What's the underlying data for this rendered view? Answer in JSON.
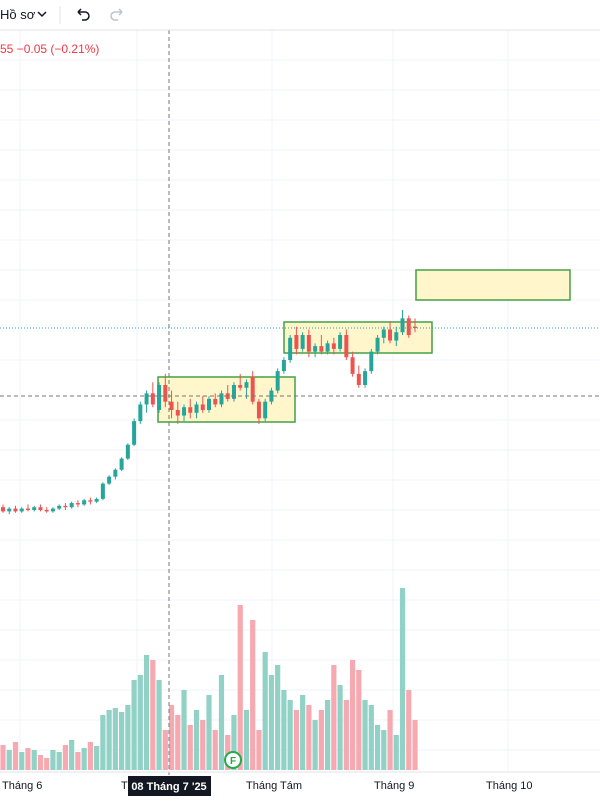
{
  "toolbar": {
    "profile": "Hồ sơ"
  },
  "legend": {
    "change": "55 −0.05 (−0.21%)"
  },
  "chart_data": {
    "type": "candlestick",
    "open": [
      17.1,
      16.95,
      17.05,
      16.95,
      17.05,
      17.0,
      17.1,
      17.0,
      16.95,
      17.05,
      17.15,
      17.1,
      17.25,
      17.2,
      17.35,
      17.3,
      17.4,
      17.95,
      18.2,
      18.45,
      18.85,
      19.35,
      20.2,
      20.8,
      21.2,
      20.6,
      21.5,
      20.9,
      20.6,
      20.4,
      20.7,
      20.5,
      20.8,
      20.6,
      21.0,
      20.8,
      21.2,
      21.0,
      21.5,
      21.4,
      21.8,
      20.9,
      20.3,
      20.9,
      21.3,
      22.0,
      22.4,
      23.3,
      22.8,
      23.3,
      22.7,
      22.9,
      22.7,
      23.0,
      22.8,
      23.3,
      22.5,
      21.9,
      21.5,
      22.0,
      22.7,
      23.2,
      23.5,
      23.1,
      23.4,
      23.9,
      23.6
    ],
    "high": [
      17.2,
      17.1,
      17.15,
      17.1,
      17.2,
      17.15,
      17.2,
      17.1,
      17.1,
      17.2,
      17.25,
      17.3,
      17.35,
      17.4,
      17.45,
      17.45,
      18.0,
      18.25,
      18.5,
      18.9,
      19.4,
      20.3,
      20.9,
      21.3,
      21.6,
      21.6,
      21.9,
      21.3,
      20.9,
      20.8,
      21.0,
      20.9,
      21.1,
      21.1,
      21.2,
      21.3,
      21.5,
      21.6,
      21.9,
      21.7,
      22.0,
      21.0,
      21.0,
      21.4,
      22.1,
      22.5,
      23.3,
      23.6,
      23.4,
      23.5,
      23.0,
      23.3,
      23.1,
      23.2,
      23.4,
      23.5,
      22.7,
      22.2,
      22.1,
      22.8,
      23.3,
      23.6,
      23.8,
      23.6,
      24.2,
      24.0,
      23.9
    ],
    "low": [
      16.9,
      16.85,
      16.9,
      16.9,
      16.95,
      16.95,
      16.95,
      16.9,
      16.9,
      17.0,
      17.0,
      17.05,
      17.1,
      17.15,
      17.2,
      17.25,
      17.35,
      17.9,
      18.1,
      18.4,
      18.8,
      19.3,
      20.1,
      20.5,
      20.7,
      20.5,
      20.7,
      20.3,
      20.1,
      20.2,
      20.3,
      20.3,
      20.5,
      20.5,
      20.7,
      20.7,
      20.9,
      20.9,
      21.3,
      21.0,
      20.8,
      20.1,
      20.2,
      20.8,
      21.2,
      21.9,
      22.3,
      22.6,
      22.7,
      22.5,
      22.5,
      22.6,
      22.6,
      22.6,
      22.7,
      22.4,
      21.8,
      21.4,
      21.4,
      21.9,
      22.6,
      23.0,
      23.0,
      22.9,
      23.3,
      23.2,
      23.4
    ],
    "close": [
      16.95,
      17.05,
      16.95,
      17.05,
      17.0,
      17.1,
      17.0,
      16.95,
      17.05,
      17.15,
      17.1,
      17.25,
      17.2,
      17.35,
      17.3,
      17.4,
      17.95,
      18.2,
      18.45,
      18.85,
      19.35,
      20.2,
      20.8,
      21.2,
      20.8,
      21.5,
      20.9,
      20.6,
      20.4,
      20.7,
      20.5,
      20.8,
      20.6,
      21.0,
      20.8,
      21.2,
      21.0,
      21.5,
      21.4,
      21.6,
      20.9,
      20.3,
      20.9,
      21.3,
      22.0,
      22.4,
      23.2,
      22.8,
      23.3,
      22.7,
      22.9,
      22.7,
      23.0,
      22.8,
      23.3,
      22.5,
      21.9,
      21.5,
      22.0,
      22.7,
      23.2,
      23.5,
      23.1,
      23.4,
      23.9,
      23.3,
      23.55
    ],
    "ylim": [
      15.2,
      35.36
    ],
    "volume": [
      25,
      20,
      28,
      18,
      22,
      20,
      15,
      12,
      20,
      18,
      25,
      30,
      18,
      22,
      28,
      24,
      55,
      60,
      62,
      58,
      65,
      90,
      95,
      115,
      110,
      90,
      40,
      65,
      55,
      80,
      45,
      60,
      50,
      75,
      40,
      95,
      35,
      55,
      165,
      60,
      150,
      40,
      118,
      95,
      105,
      80,
      70,
      60,
      75,
      65,
      50,
      60,
      70,
      105,
      85,
      70,
      110,
      100,
      70,
      65,
      45,
      40,
      60,
      35,
      182,
      80,
      50
    ],
    "vlim": [
      0,
      200
    ],
    "time_labels": [
      "Tháng 6",
      "Tháng Tám",
      "Tháng 9",
      "Tháng 10"
    ],
    "crosshair_label": "08 Tháng 7 '25",
    "event_marker": "F"
  }
}
